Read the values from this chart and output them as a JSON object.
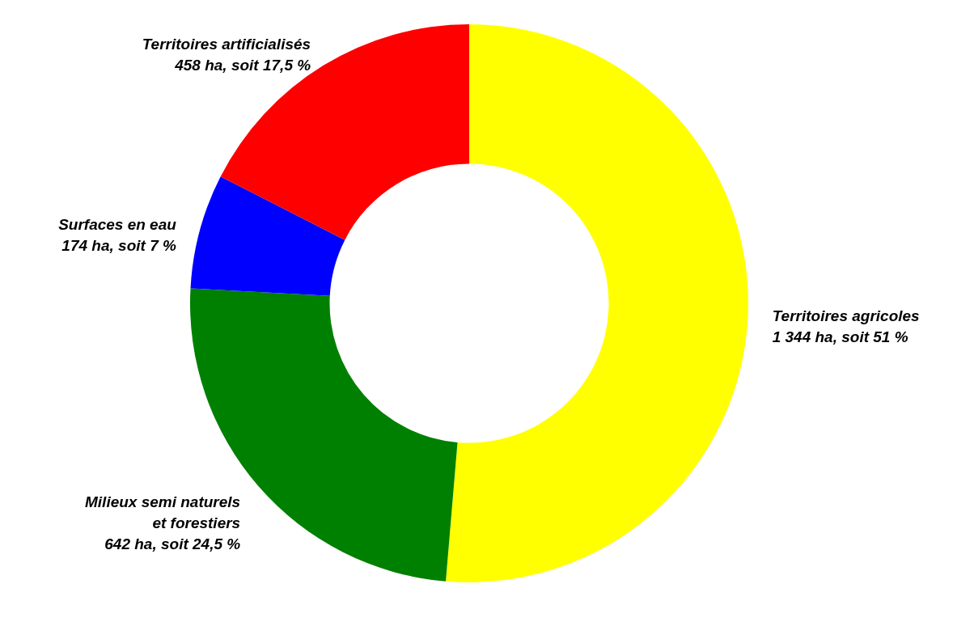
{
  "chart_data": {
    "type": "donut",
    "categories": [
      "Territoires agricoles",
      "Milieux semi naturels\net forestiers",
      "Surfaces en eau",
      "Territoires artificialisés"
    ],
    "values": [
      1344,
      642,
      174,
      458
    ],
    "colors": [
      "#ffff00",
      "#008000",
      "#0000ff",
      "#ff0000"
    ],
    "value_labels": [
      "1 344 ha, soit 51 %",
      "642 ha, soit 24,5 %",
      "174 ha, soit 7 %",
      "458 ha, soit 17,5 %"
    ],
    "legend": false
  }
}
